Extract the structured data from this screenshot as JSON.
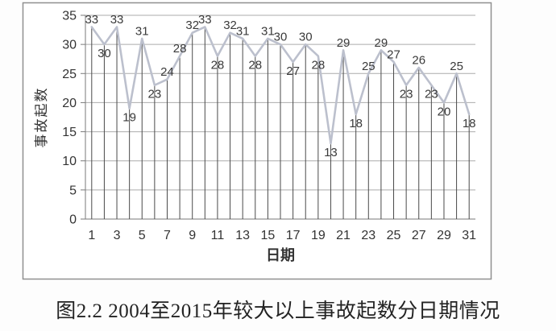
{
  "figure": {
    "caption": "图2.2 2004至2015年较大以上事故起数分日期情况"
  },
  "chart_data": {
    "type": "line",
    "title": "",
    "xlabel": "日期",
    "ylabel": "事故起数",
    "x": [
      1,
      2,
      3,
      4,
      5,
      6,
      7,
      8,
      9,
      10,
      11,
      12,
      13,
      14,
      15,
      16,
      17,
      18,
      19,
      20,
      21,
      22,
      23,
      24,
      25,
      26,
      27,
      28,
      29,
      30,
      31
    ],
    "values": [
      33,
      30,
      33,
      19,
      31,
      23,
      24,
      28,
      32,
      33,
      28,
      32,
      31,
      28,
      31,
      30,
      27,
      30,
      28,
      13,
      29,
      18,
      25,
      29,
      27,
      23,
      26,
      23,
      20,
      25,
      18
    ],
    "ylim": [
      0,
      35
    ],
    "yticks": [
      0,
      5,
      10,
      15,
      20,
      25,
      30,
      35
    ],
    "xticks": [
      1,
      3,
      5,
      7,
      9,
      11,
      13,
      15,
      17,
      19,
      21,
      23,
      25,
      27,
      29,
      31
    ],
    "grid": true,
    "legend": "none",
    "data_labels": true,
    "labels_below_days": [
      2,
      4,
      6,
      11,
      14,
      17,
      19,
      20,
      22,
      26,
      28,
      29,
      31
    ],
    "colors": {
      "series_line": "#bcc0cd",
      "drop_line": "#4a4a4a",
      "gridline": "#ababab",
      "axis": "#7a7a7a",
      "frame_border": "#8f8f8f",
      "data_label": "#3a3a3a",
      "tick_label": "#333333",
      "plot_background": "#ffffff"
    }
  }
}
